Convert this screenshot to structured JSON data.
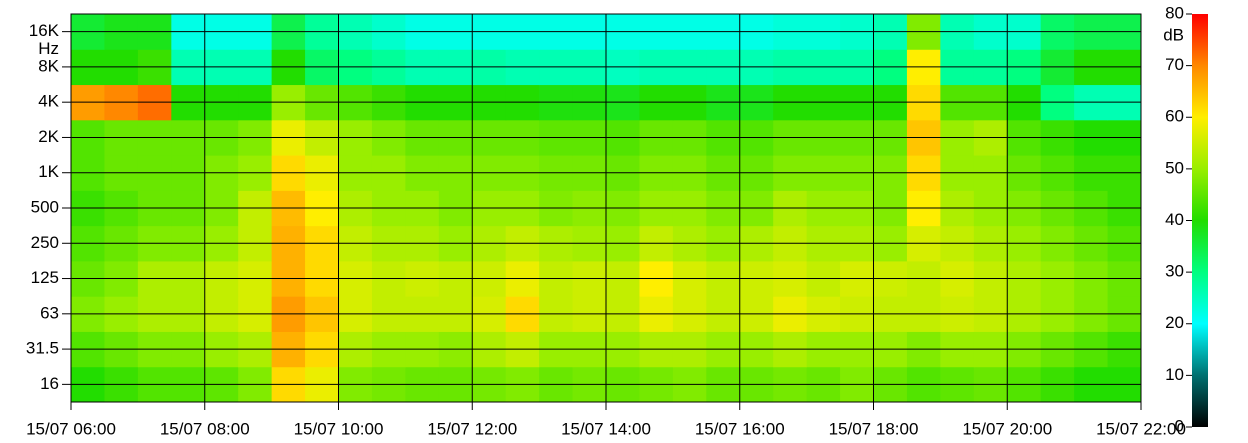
{
  "chart_data": {
    "type": "heatmap",
    "y_label": "Hz",
    "colorbar_label": "dB",
    "x": [
      6,
      6.5,
      7,
      7.5,
      8,
      8.5,
      9,
      9.5,
      10,
      10.5,
      11,
      11.5,
      12,
      12.5,
      13,
      13.5,
      14,
      14.5,
      15,
      15.5,
      16,
      16.5,
      17,
      17.5,
      18,
      18.5,
      19,
      19.5,
      20,
      20.5,
      21,
      21.5
    ],
    "xlim": [
      6,
      22
    ],
    "xticks": [
      {
        "value": 6,
        "label": "15/07 06:00"
      },
      {
        "value": 8,
        "label": "15/07 08:00"
      },
      {
        "value": 10,
        "label": "15/07 10:00"
      },
      {
        "value": 12,
        "label": "15/07 12:00"
      },
      {
        "value": 14,
        "label": "15/07 14:00"
      },
      {
        "value": 16,
        "label": "15/07 16:00"
      },
      {
        "value": 18,
        "label": "15/07 18:00"
      },
      {
        "value": 20,
        "label": "15/07 20:00"
      },
      {
        "value": 22,
        "label": "15/07 22:00"
      }
    ],
    "y_categories": [
      "16",
      "31.5",
      "63",
      "125",
      "250",
      "500",
      "1K",
      "2K",
      "4K",
      "8K",
      "16K"
    ],
    "z": [
      [
        40,
        42,
        44,
        44,
        45,
        48,
        62,
        58,
        48,
        47,
        46,
        46,
        47,
        48,
        46,
        47,
        46,
        47,
        48,
        46,
        46,
        47,
        46,
        48,
        46,
        44,
        45,
        46,
        44,
        42,
        40,
        40
      ],
      [
        44,
        46,
        48,
        48,
        50,
        52,
        66,
        62,
        52,
        50,
        50,
        49,
        52,
        54,
        50,
        50,
        50,
        52,
        52,
        50,
        50,
        52,
        50,
        50,
        50,
        48,
        50,
        50,
        48,
        46,
        44,
        42
      ],
      [
        48,
        50,
        52,
        52,
        54,
        56,
        68,
        64,
        56,
        54,
        54,
        54,
        56,
        62,
        54,
        55,
        54,
        58,
        56,
        54,
        55,
        58,
        56,
        55,
        54,
        54,
        55,
        54,
        52,
        50,
        48,
        46
      ],
      [
        46,
        48,
        52,
        52,
        54,
        56,
        66,
        62,
        56,
        54,
        55,
        54,
        55,
        58,
        54,
        55,
        54,
        60,
        56,
        54,
        55,
        56,
        54,
        56,
        55,
        54,
        56,
        54,
        52,
        50,
        48,
        46
      ],
      [
        44,
        46,
        48,
        48,
        50,
        54,
        66,
        62,
        54,
        52,
        52,
        50,
        52,
        54,
        52,
        51,
        50,
        54,
        52,
        50,
        52,
        54,
        52,
        52,
        50,
        56,
        54,
        52,
        50,
        48,
        46,
        44
      ],
      [
        42,
        44,
        46,
        46,
        48,
        54,
        65,
        60,
        52,
        50,
        50,
        48,
        50,
        50,
        48,
        49,
        48,
        50,
        50,
        48,
        48,
        52,
        50,
        50,
        48,
        60,
        52,
        50,
        48,
        46,
        44,
        42
      ],
      [
        44,
        46,
        46,
        46,
        48,
        50,
        62,
        58,
        50,
        50,
        48,
        48,
        48,
        48,
        47,
        47,
        46,
        48,
        48,
        46,
        46,
        48,
        48,
        48,
        48,
        62,
        50,
        50,
        46,
        44,
        42,
        42
      ],
      [
        44,
        46,
        46,
        46,
        46,
        48,
        58,
        54,
        50,
        48,
        46,
        46,
        46,
        46,
        45,
        45,
        44,
        46,
        46,
        44,
        44,
        46,
        46,
        46,
        46,
        64,
        50,
        52,
        44,
        42,
        40,
        40
      ],
      [
        68,
        70,
        72,
        40,
        40,
        40,
        50,
        46,
        44,
        42,
        40,
        40,
        40,
        40,
        39,
        39,
        38,
        40,
        40,
        38,
        38,
        40,
        40,
        40,
        40,
        62,
        44,
        44,
        40,
        30,
        26,
        26
      ],
      [
        40,
        40,
        42,
        26,
        26,
        26,
        40,
        32,
        30,
        28,
        26,
        26,
        27,
        26,
        26,
        26,
        25,
        26,
        26,
        26,
        26,
        27,
        27,
        27,
        30,
        60,
        28,
        28,
        30,
        36,
        40,
        40
      ],
      [
        36,
        38,
        38,
        22,
        22,
        22,
        34,
        28,
        26,
        24,
        22,
        22,
        22,
        22,
        22,
        22,
        22,
        22,
        22,
        22,
        22,
        23,
        23,
        24,
        26,
        48,
        26,
        24,
        24,
        32,
        34,
        34
      ]
    ],
    "clim": [
      0,
      80
    ],
    "cticks": [
      0,
      10,
      20,
      30,
      40,
      50,
      60,
      70,
      80
    ],
    "colors": [
      "#000000",
      "#007070",
      "#00ffff",
      "#00ff80",
      "#22dd00",
      "#99ee00",
      "#ffee00",
      "#ff8800",
      "#ff0000"
    ],
    "grid": true
  }
}
